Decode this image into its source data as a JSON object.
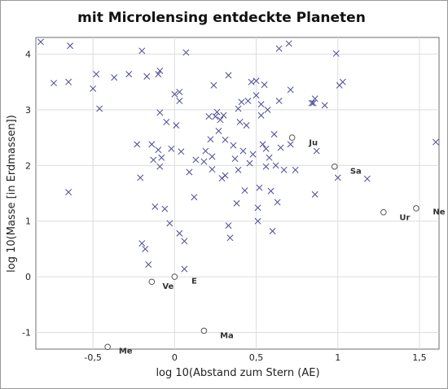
{
  "chart_data": {
    "type": "scatter",
    "title": "mit Microlensing entdeckte Planeten",
    "xlabel": "log 10(Abstand zum Stern (AE)",
    "ylabel": "log 10(Masse [in Erdmassen])",
    "xlim": [
      -0.85,
      1.62
    ],
    "ylim": [
      -1.3,
      4.3
    ],
    "xticks": [
      -0.5,
      0,
      0.5,
      1,
      1.5
    ],
    "xtick_labels": [
      "-0,5",
      "0",
      "0,5",
      "1",
      "1,5"
    ],
    "yticks": [
      -1,
      0,
      1,
      2,
      3,
      4
    ],
    "ytick_labels": [
      "-1",
      "0",
      "1",
      "2",
      "3",
      "4"
    ],
    "grid": true,
    "series": [
      {
        "marker": "x",
        "color": "#4a4a9a",
        "points": [
          [
            -0.82,
            4.22
          ],
          [
            -0.74,
            3.48
          ],
          [
            -0.64,
            4.15
          ],
          [
            -0.65,
            3.5
          ],
          [
            -0.65,
            1.52
          ],
          [
            -0.5,
            3.38
          ],
          [
            -0.48,
            3.64
          ],
          [
            -0.46,
            3.02
          ],
          [
            -0.37,
            3.58
          ],
          [
            -0.28,
            3.64
          ],
          [
            -0.2,
            4.06
          ],
          [
            -0.23,
            2.38
          ],
          [
            -0.21,
            1.78
          ],
          [
            -0.2,
            0.6
          ],
          [
            -0.18,
            0.5
          ],
          [
            -0.16,
            0.22
          ],
          [
            -0.17,
            3.6
          ],
          [
            -0.14,
            2.38
          ],
          [
            -0.13,
            2.1
          ],
          [
            -0.12,
            1.26
          ],
          [
            -0.1,
            3.64
          ],
          [
            -0.09,
            3.7
          ],
          [
            -0.09,
            2.95
          ],
          [
            -0.1,
            2.28
          ],
          [
            -0.09,
            1.98
          ],
          [
            -0.08,
            2.14
          ],
          [
            -0.06,
            1.22
          ],
          [
            -0.05,
            2.78
          ],
          [
            -0.03,
            0.96
          ],
          [
            -0.02,
            2.3
          ],
          [
            0.0,
            3.28
          ],
          [
            0.01,
            2.72
          ],
          [
            0.03,
            3.32
          ],
          [
            0.03,
            3.16
          ],
          [
            0.03,
            0.78
          ],
          [
            0.04,
            2.25
          ],
          [
            0.06,
            0.64
          ],
          [
            0.06,
            0.14
          ],
          [
            0.07,
            4.03
          ],
          [
            0.09,
            1.88
          ],
          [
            0.12,
            1.43
          ],
          [
            0.13,
            2.1
          ],
          [
            0.18,
            2.07
          ],
          [
            0.19,
            2.26
          ],
          [
            0.21,
            2.88
          ],
          [
            0.22,
            2.47
          ],
          [
            0.23,
            2.16
          ],
          [
            0.23,
            1.93
          ],
          [
            0.24,
            3.44
          ],
          [
            0.25,
            2.88
          ],
          [
            0.26,
            2.96
          ],
          [
            0.28,
            2.82
          ],
          [
            0.27,
            2.62
          ],
          [
            0.29,
            1.77
          ],
          [
            0.3,
            2.9
          ],
          [
            0.31,
            2.46
          ],
          [
            0.31,
            1.82
          ],
          [
            0.33,
            3.62
          ],
          [
            0.33,
            0.92
          ],
          [
            0.34,
            0.7
          ],
          [
            0.36,
            2.36
          ],
          [
            0.37,
            2.12
          ],
          [
            0.38,
            1.32
          ],
          [
            0.39,
            3.02
          ],
          [
            0.39,
            1.92
          ],
          [
            0.4,
            2.78
          ],
          [
            0.41,
            3.14
          ],
          [
            0.42,
            2.26
          ],
          [
            0.43,
            1.55
          ],
          [
            0.44,
            2.72
          ],
          [
            0.45,
            3.16
          ],
          [
            0.46,
            2.04
          ],
          [
            0.47,
            3.5
          ],
          [
            0.48,
            2.2
          ],
          [
            0.5,
            3.52
          ],
          [
            0.5,
            3.26
          ],
          [
            0.51,
            1.24
          ],
          [
            0.51,
            1.0
          ],
          [
            0.52,
            1.6
          ],
          [
            0.53,
            3.1
          ],
          [
            0.53,
            2.9
          ],
          [
            0.54,
            2.38
          ],
          [
            0.55,
            3.45
          ],
          [
            0.56,
            2.3
          ],
          [
            0.56,
            1.98
          ],
          [
            0.57,
            3.0
          ],
          [
            0.58,
            2.14
          ],
          [
            0.59,
            1.54
          ],
          [
            0.6,
            0.82
          ],
          [
            0.61,
            2.56
          ],
          [
            0.62,
            2.0
          ],
          [
            0.63,
            1.34
          ],
          [
            0.64,
            3.16
          ],
          [
            0.64,
            4.1
          ],
          [
            0.65,
            2.32
          ],
          [
            0.67,
            1.92
          ],
          [
            0.7,
            4.19
          ],
          [
            0.71,
            3.36
          ],
          [
            0.71,
            2.38
          ],
          [
            0.74,
            1.92
          ],
          [
            0.84,
            3.12
          ],
          [
            0.86,
            3.2
          ],
          [
            0.85,
            3.12
          ],
          [
            0.86,
            1.48
          ],
          [
            0.87,
            2.26
          ],
          [
            0.92,
            3.08
          ],
          [
            0.99,
            4.01
          ],
          [
            1.0,
            1.78
          ],
          [
            1.01,
            3.44
          ],
          [
            1.03,
            3.5
          ],
          [
            1.18,
            1.76
          ],
          [
            1.6,
            2.42
          ]
        ]
      },
      {
        "marker": "o",
        "color": "#555555",
        "points": [
          [
            -0.41,
            -1.26
          ],
          [
            -0.14,
            -0.09
          ],
          [
            0.0,
            0.0
          ],
          [
            0.18,
            -0.97
          ],
          [
            0.72,
            2.5
          ],
          [
            0.98,
            1.98
          ],
          [
            1.28,
            1.16
          ],
          [
            1.48,
            1.23
          ]
        ]
      }
    ],
    "annotations": [
      {
        "text": "Me",
        "x": -0.3,
        "y": -1.38
      },
      {
        "text": "Ve",
        "x": -0.04,
        "y": -0.22
      },
      {
        "text": "E",
        "x": 0.12,
        "y": -0.12
      },
      {
        "text": "Ma",
        "x": 0.32,
        "y": -1.1
      },
      {
        "text": "Ju",
        "x": 0.85,
        "y": 2.36
      },
      {
        "text": "Sa",
        "x": 1.11,
        "y": 1.85
      },
      {
        "text": "Ur",
        "x": 1.41,
        "y": 1.02
      },
      {
        "text": "Ne",
        "x": 1.62,
        "y": 1.12
      }
    ]
  }
}
